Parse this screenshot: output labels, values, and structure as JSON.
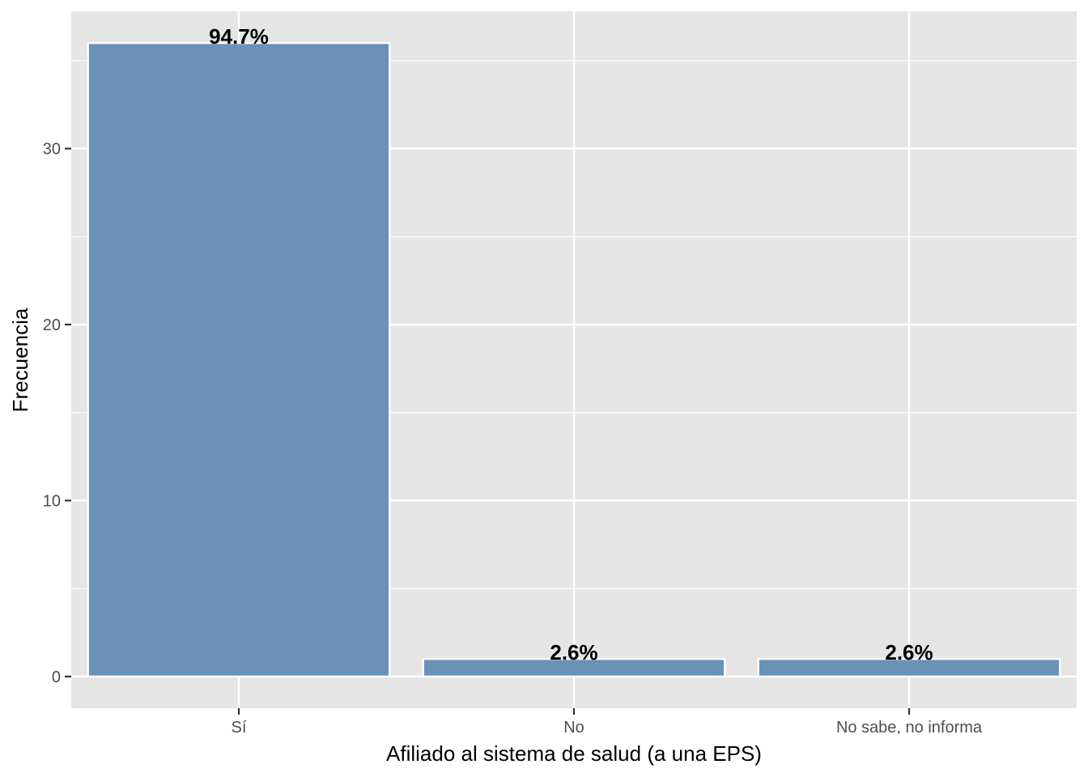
{
  "chart_data": {
    "type": "bar",
    "categories": [
      "Sí",
      "No",
      "No sabe, no informa"
    ],
    "values": [
      36,
      1,
      1
    ],
    "data_labels": [
      "94.7%",
      "2.6%",
      "2.6%"
    ],
    "xlabel": "Afiliado al sistema de salud (a una EPS)",
    "ylabel": "Frecuencia",
    "ylim": [
      -1.8,
      37.8
    ],
    "yticks": [
      0,
      10,
      20,
      30
    ],
    "grid": true,
    "colors": {
      "panel": "#e5e5e5",
      "grid": "#ffffff",
      "bar_fill": "#6a92b9",
      "bar_stroke": "#ffffff"
    }
  }
}
